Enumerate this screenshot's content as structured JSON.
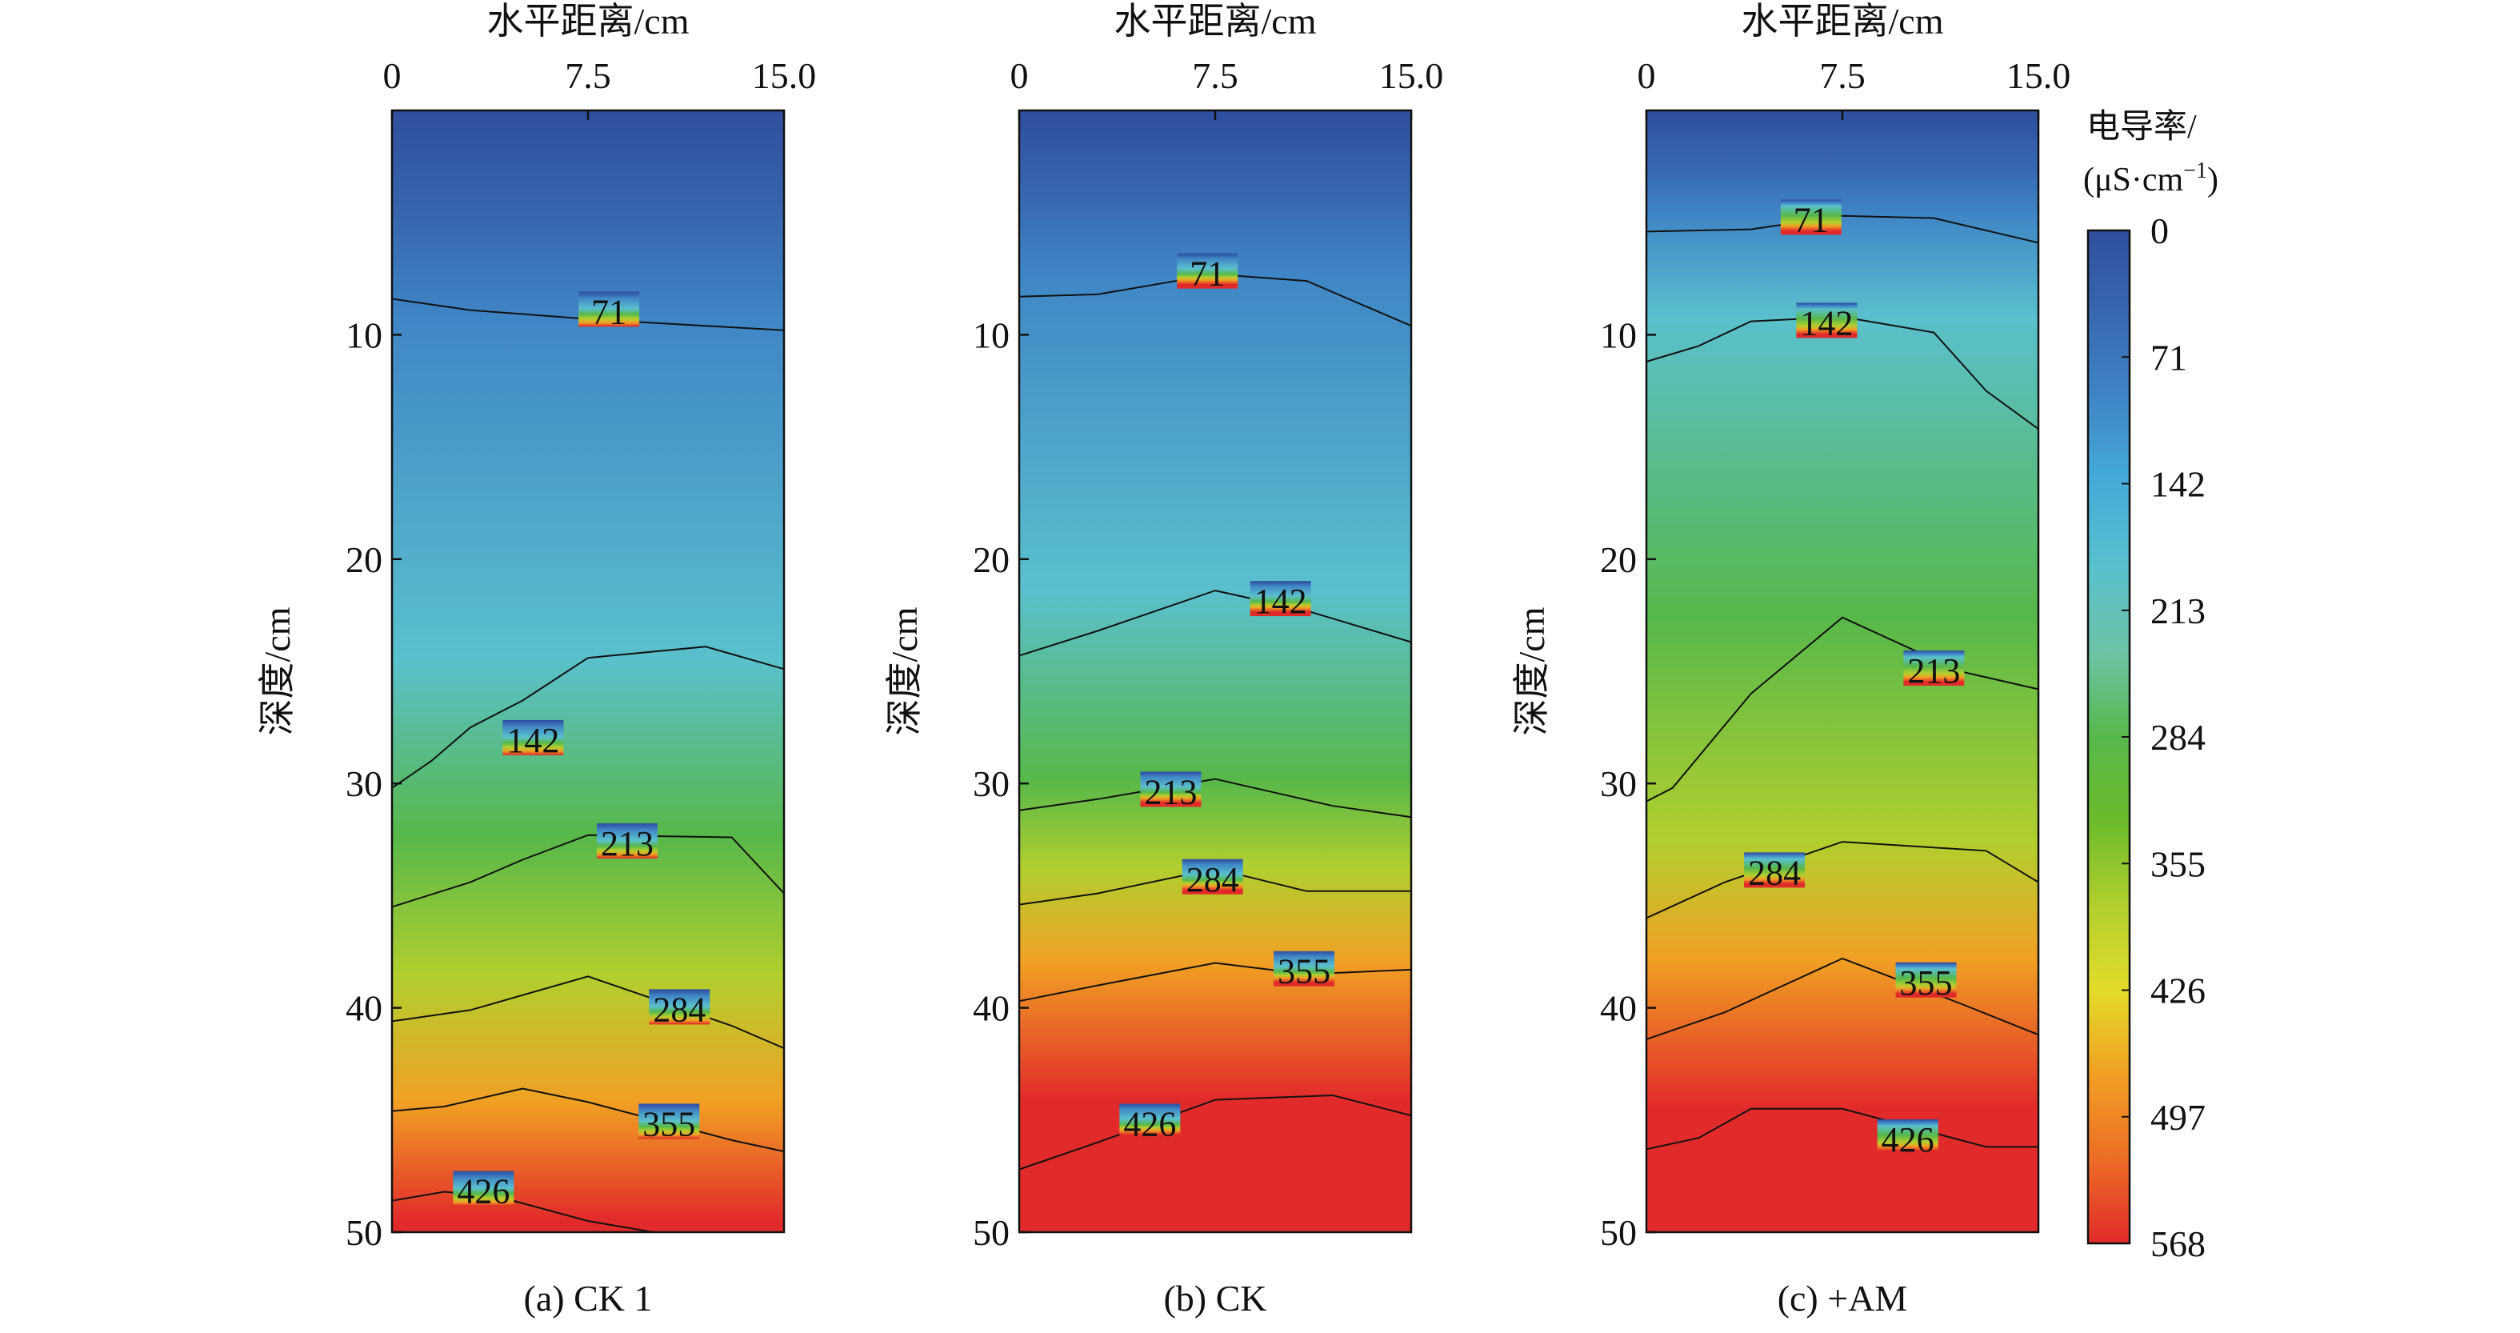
{
  "colors": {
    "scale": [
      "#2f4e9e",
      "#3868b2",
      "#3f86c6",
      "#45acd8",
      "#5ac0cd",
      "#6cc3a6",
      "#57b84a",
      "#6cbb2c",
      "#b2cf2e",
      "#e3dc2a",
      "#f1a024",
      "#ec6d26",
      "#e12b2a"
    ],
    "contour": "#111111",
    "frame": "#111111"
  },
  "chart_data": [
    {
      "type": "heatmap",
      "title": "(a) CK 1",
      "xlabel": "水平距离/cm",
      "ylabel": "深度/cm",
      "x": [
        0,
        7.5,
        15.0
      ],
      "x_ticks": [
        "0",
        "7.5",
        "15.0"
      ],
      "y_ticks": [
        "10",
        "20",
        "30",
        "40",
        "50"
      ],
      "xlim": [
        0,
        15
      ],
      "ylim": [
        0,
        50
      ],
      "contours": [
        {
          "level": "71",
          "points": [
            [
              0,
              8.4
            ],
            [
              3,
              8.9
            ],
            [
              7.5,
              9.3
            ],
            [
              12,
              9.6
            ],
            [
              15,
              9.8
            ]
          ],
          "label_at": [
            8.3,
            9.0
          ]
        },
        {
          "level": "142",
          "points": [
            [
              0,
              30.2
            ],
            [
              1.5,
              29.0
            ],
            [
              3,
              27.5
            ],
            [
              5,
              26.3
            ],
            [
              7.5,
              24.4
            ],
            [
              12,
              23.9
            ],
            [
              15,
              24.9
            ]
          ],
          "label_at": [
            5.4,
            28.1
          ]
        },
        {
          "level": "213",
          "points": [
            [
              0,
              35.5
            ],
            [
              3,
              34.4
            ],
            [
              5,
              33.4
            ],
            [
              7.5,
              32.3
            ],
            [
              13,
              32.4
            ],
            [
              15,
              34.9
            ]
          ],
          "label_at": [
            9.0,
            32.7
          ]
        },
        {
          "level": "284",
          "points": [
            [
              0,
              40.6
            ],
            [
              3,
              40.1
            ],
            [
              7.5,
              38.6
            ],
            [
              13,
              40.8
            ],
            [
              15,
              41.8
            ]
          ],
          "label_at": [
            11.0,
            40.1
          ]
        },
        {
          "level": "355",
          "points": [
            [
              0,
              44.6
            ],
            [
              2,
              44.4
            ],
            [
              5,
              43.6
            ],
            [
              7.5,
              44.2
            ],
            [
              13,
              45.9
            ],
            [
              15,
              46.4
            ]
          ],
          "label_at": [
            10.6,
            45.2
          ]
        },
        {
          "level": "426",
          "points": [
            [
              0,
              48.6
            ],
            [
              2,
              48.2
            ],
            [
              4,
              48.4
            ],
            [
              7.5,
              49.5
            ],
            [
              10,
              50.0
            ]
          ],
          "label_at": [
            3.5,
            48.2
          ]
        }
      ]
    },
    {
      "type": "heatmap",
      "title": "(b) CK",
      "xlabel": "水平距离/cm",
      "ylabel": "深度/cm",
      "x": [
        0,
        7.5,
        15.0
      ],
      "x_ticks": [
        "0",
        "7.5",
        "15.0"
      ],
      "y_ticks": [
        "10",
        "20",
        "30",
        "40",
        "50"
      ],
      "xlim": [
        0,
        15
      ],
      "ylim": [
        0,
        50
      ],
      "contours": [
        {
          "level": "71",
          "points": [
            [
              0,
              8.3
            ],
            [
              3,
              8.2
            ],
            [
              7.5,
              7.3
            ],
            [
              11,
              7.6
            ],
            [
              15,
              9.6
            ]
          ],
          "label_at": [
            7.2,
            7.3
          ]
        },
        {
          "level": "142",
          "points": [
            [
              0,
              24.3
            ],
            [
              3,
              23.2
            ],
            [
              7.5,
              21.4
            ],
            [
              11,
              22.3
            ],
            [
              15,
              23.7
            ]
          ],
          "label_at": [
            10.0,
            21.9
          ]
        },
        {
          "level": "213",
          "points": [
            [
              0,
              31.2
            ],
            [
              3,
              30.7
            ],
            [
              7.5,
              29.8
            ],
            [
              12,
              31.0
            ],
            [
              15,
              31.5
            ]
          ],
          "label_at": [
            5.8,
            30.4
          ]
        },
        {
          "level": "284",
          "points": [
            [
              0,
              35.4
            ],
            [
              3,
              34.9
            ],
            [
              7.5,
              33.8
            ],
            [
              11,
              34.8
            ],
            [
              15,
              34.8
            ]
          ],
          "label_at": [
            7.4,
            34.3
          ]
        },
        {
          "level": "355",
          "points": [
            [
              0,
              39.7
            ],
            [
              3,
              39.0
            ],
            [
              7.5,
              38.0
            ],
            [
              11,
              38.5
            ],
            [
              15,
              38.3
            ]
          ],
          "label_at": [
            10.9,
            38.4
          ]
        },
        {
          "level": "426",
          "points": [
            [
              0,
              47.2
            ],
            [
              3,
              46.0
            ],
            [
              7.5,
              44.1
            ],
            [
              12,
              43.9
            ],
            [
              15,
              44.8
            ]
          ],
          "label_at": [
            5.0,
            45.2
          ]
        }
      ]
    },
    {
      "type": "heatmap",
      "title": "(c) +AM",
      "xlabel": "水平距离/cm",
      "ylabel": "深度/cm",
      "x": [
        0,
        7.5,
        15.0
      ],
      "x_ticks": [
        "0",
        "7.5",
        "15.0"
      ],
      "y_ticks": [
        "10",
        "20",
        "30",
        "40",
        "50"
      ],
      "xlim": [
        0,
        15
      ],
      "ylim": [
        0,
        50
      ],
      "contours": [
        {
          "level": "71",
          "points": [
            [
              0,
              5.4
            ],
            [
              4,
              5.3
            ],
            [
              7.5,
              4.7
            ],
            [
              11,
              4.8
            ],
            [
              15,
              5.9
            ]
          ],
          "label_at": [
            6.3,
            4.9
          ]
        },
        {
          "level": "142",
          "points": [
            [
              0,
              11.2
            ],
            [
              2,
              10.5
            ],
            [
              4,
              9.4
            ],
            [
              7.5,
              9.2
            ],
            [
              11,
              9.9
            ],
            [
              13,
              12.5
            ],
            [
              15,
              14.2
            ]
          ],
          "label_at": [
            6.9,
            9.5
          ]
        },
        {
          "level": "213",
          "points": [
            [
              0,
              30.8
            ],
            [
              1,
              30.2
            ],
            [
              4,
              26.0
            ],
            [
              7.5,
              22.6
            ],
            [
              12,
              25.0
            ],
            [
              15,
              25.8
            ]
          ],
          "label_at": [
            11.0,
            25.0
          ]
        },
        {
          "level": "284",
          "points": [
            [
              0,
              36.0
            ],
            [
              3,
              34.4
            ],
            [
              7.5,
              32.6
            ],
            [
              13,
              33.0
            ],
            [
              15,
              34.4
            ]
          ],
          "label_at": [
            4.9,
            34.0
          ]
        },
        {
          "level": "355",
          "points": [
            [
              0,
              41.4
            ],
            [
              3,
              40.2
            ],
            [
              7.5,
              37.8
            ],
            [
              12,
              39.8
            ],
            [
              15,
              41.2
            ]
          ],
          "label_at": [
            10.7,
            38.9
          ]
        },
        {
          "level": "426",
          "points": [
            [
              0,
              46.3
            ],
            [
              2,
              45.8
            ],
            [
              4,
              44.5
            ],
            [
              7.5,
              44.5
            ],
            [
              13,
              46.2
            ],
            [
              15,
              46.2
            ]
          ],
          "label_at": [
            10.0,
            45.9
          ]
        }
      ]
    }
  ],
  "colorbar": {
    "title_line1": "电导率/",
    "title_line2": "(μS·cm",
    "title_sup": "−1",
    "title_close": ")",
    "ticks": [
      "0",
      "71",
      "142",
      "213",
      "284",
      "355",
      "426",
      "497",
      "568"
    ]
  }
}
